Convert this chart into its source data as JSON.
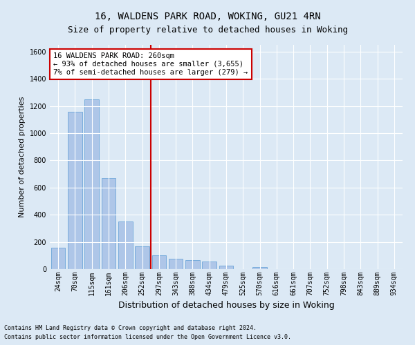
{
  "title1": "16, WALDENS PARK ROAD, WOKING, GU21 4RN",
  "title2": "Size of property relative to detached houses in Woking",
  "xlabel": "Distribution of detached houses by size in Woking",
  "ylabel": "Number of detached properties",
  "categories": [
    "24sqm",
    "70sqm",
    "115sqm",
    "161sqm",
    "206sqm",
    "252sqm",
    "297sqm",
    "343sqm",
    "388sqm",
    "434sqm",
    "479sqm",
    "525sqm",
    "570sqm",
    "616sqm",
    "661sqm",
    "707sqm",
    "752sqm",
    "798sqm",
    "843sqm",
    "889sqm",
    "934sqm"
  ],
  "values": [
    155,
    1160,
    1250,
    670,
    350,
    170,
    100,
    75,
    65,
    55,
    25,
    0,
    15,
    0,
    0,
    0,
    0,
    0,
    0,
    0,
    0
  ],
  "bar_color": "#aec6e8",
  "bar_edge_color": "#5b9bd5",
  "annotation_text": "16 WALDENS PARK ROAD: 260sqm\n← 93% of detached houses are smaller (3,655)\n7% of semi-detached houses are larger (279) →",
  "annotation_box_color": "#ffffff",
  "annotation_box_edge_color": "#cc0000",
  "vline_color": "#cc0000",
  "ylim": [
    0,
    1650
  ],
  "yticks": [
    0,
    200,
    400,
    600,
    800,
    1000,
    1200,
    1400,
    1600
  ],
  "footer1": "Contains HM Land Registry data © Crown copyright and database right 2024.",
  "footer2": "Contains public sector information licensed under the Open Government Licence v3.0.",
  "bg_color": "#dce9f5",
  "plot_bg_color": "#dce9f5",
  "grid_color": "#ffffff",
  "title_fontsize": 10,
  "subtitle_fontsize": 9,
  "tick_fontsize": 7,
  "ylabel_fontsize": 8,
  "xlabel_fontsize": 9,
  "footer_fontsize": 6,
  "annot_fontsize": 7.5
}
